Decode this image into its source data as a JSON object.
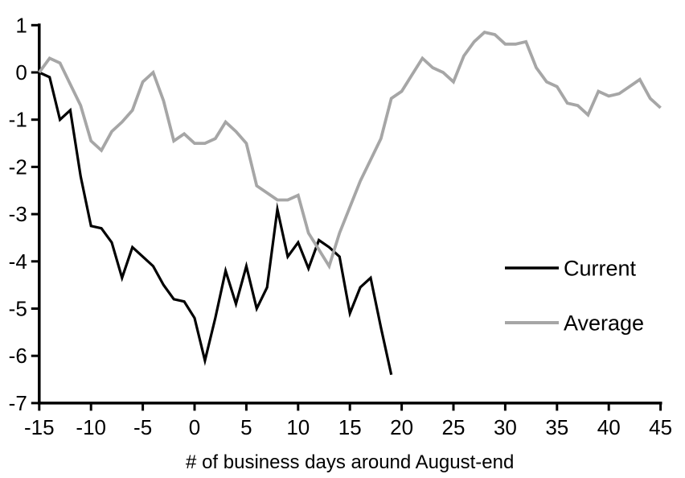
{
  "chart_data": {
    "type": "line",
    "title": "",
    "xlabel": "# of business days around August-end",
    "ylabel": "",
    "xlim": [
      -15,
      45
    ],
    "ylim": [
      -7,
      1
    ],
    "grid": false,
    "x_ticks": [
      -15,
      -10,
      -5,
      0,
      5,
      10,
      15,
      20,
      25,
      30,
      35,
      40,
      45
    ],
    "y_ticks": [
      1,
      0,
      -1,
      -2,
      -3,
      -4,
      -5,
      -6,
      -7
    ],
    "legend_position": "middle-right",
    "background_color": "#ffffff",
    "axis_color": "#000000",
    "series": [
      {
        "name": "Current",
        "color": "#000000",
        "stroke_width": 3.2,
        "x": [
          -15,
          -14,
          -13,
          -12,
          -11,
          -10,
          -9,
          -8,
          -7,
          -6,
          -5,
          -4,
          -3,
          -2,
          -1,
          0,
          1,
          2,
          3,
          4,
          5,
          6,
          7,
          8,
          9,
          10,
          11,
          12,
          13,
          14,
          15,
          16,
          17,
          18,
          19
        ],
        "values": [
          0,
          -0.1,
          -1.0,
          -0.8,
          -2.2,
          -3.25,
          -3.3,
          -3.6,
          -4.35,
          -3.7,
          -3.9,
          -4.1,
          -4.5,
          -4.8,
          -4.85,
          -5.2,
          -6.1,
          -5.2,
          -4.2,
          -4.9,
          -4.1,
          -5.0,
          -4.55,
          -2.9,
          -3.9,
          -3.6,
          -4.15,
          -3.55,
          -3.7,
          -3.9,
          -5.1,
          -4.55,
          -4.35,
          -5.4,
          -6.4
        ]
      },
      {
        "name": "Average",
        "color": "#a6a6a6",
        "stroke_width": 3.8,
        "x": [
          -15,
          -14,
          -13,
          -12,
          -11,
          -10,
          -9,
          -8,
          -7,
          -6,
          -5,
          -4,
          -3,
          -2,
          -1,
          0,
          1,
          2,
          3,
          4,
          5,
          6,
          7,
          8,
          9,
          10,
          11,
          12,
          13,
          14,
          15,
          16,
          17,
          18,
          19,
          20,
          21,
          22,
          23,
          24,
          25,
          26,
          27,
          28,
          29,
          30,
          31,
          32,
          33,
          34,
          35,
          36,
          37,
          38,
          39,
          40,
          41,
          42,
          43,
          44,
          45
        ],
        "values": [
          0,
          0.3,
          0.2,
          -0.25,
          -0.7,
          -1.45,
          -1.65,
          -1.25,
          -1.05,
          -0.8,
          -0.2,
          0.0,
          -0.6,
          -1.45,
          -1.3,
          -1.5,
          -1.5,
          -1.4,
          -1.05,
          -1.25,
          -1.5,
          -2.4,
          -2.55,
          -2.7,
          -2.7,
          -2.6,
          -3.4,
          -3.75,
          -4.1,
          -3.4,
          -2.85,
          -2.3,
          -1.85,
          -1.4,
          -0.55,
          -0.4,
          -0.05,
          0.3,
          0.1,
          0.0,
          -0.2,
          0.35,
          0.65,
          0.85,
          0.8,
          0.6,
          0.6,
          0.65,
          0.1,
          -0.2,
          -0.3,
          -0.65,
          -0.7,
          -0.9,
          -0.4,
          -0.5,
          -0.45,
          -0.3,
          -0.15,
          -0.55,
          -0.75
        ]
      }
    ]
  }
}
